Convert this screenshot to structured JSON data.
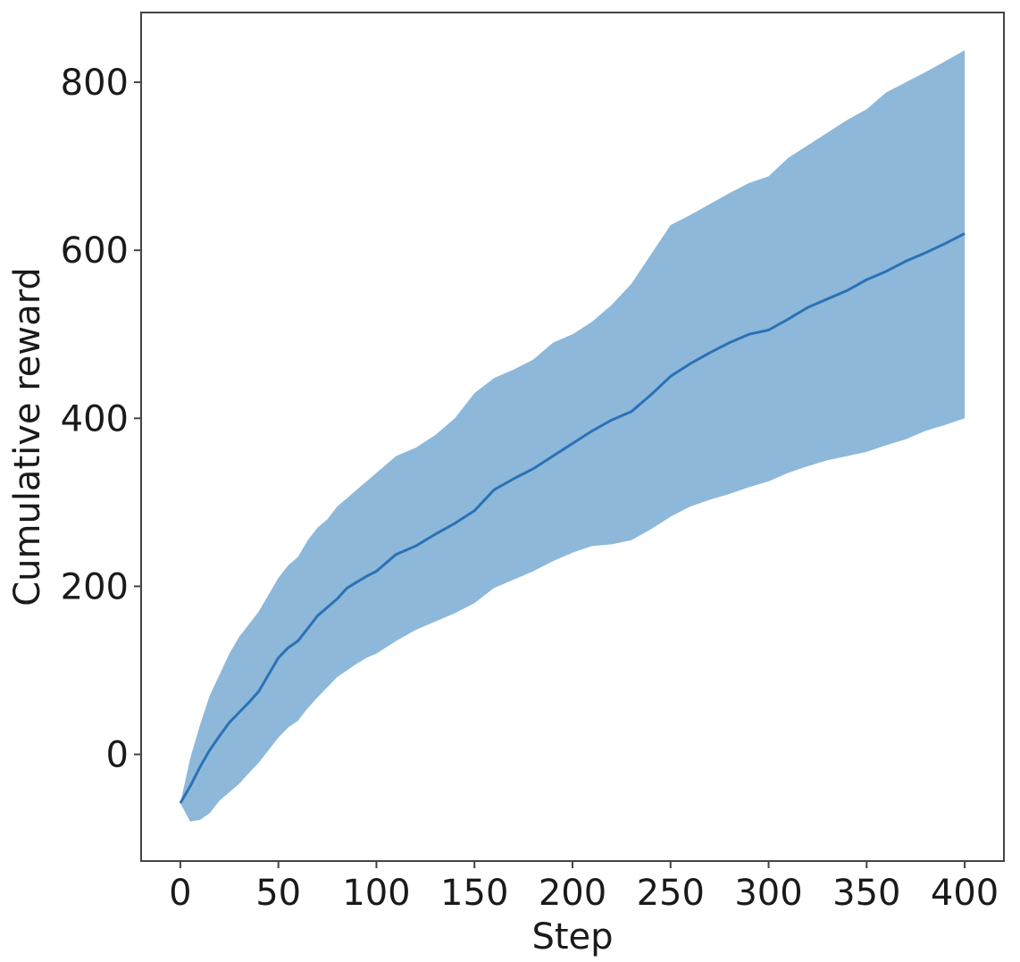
{
  "chart_data": {
    "type": "line",
    "xlabel": "Step",
    "ylabel": "Cumulative reward",
    "xlim": [
      -20,
      420
    ],
    "ylim": [
      -127,
      883
    ],
    "x_ticks": [
      0,
      50,
      100,
      150,
      200,
      250,
      300,
      350,
      400
    ],
    "y_ticks": [
      0,
      200,
      400,
      600,
      800
    ],
    "grid": false,
    "line_color": "#2a72b5",
    "band_color": "#8db8da",
    "series": [
      {
        "x": [
          0,
          5,
          10,
          15,
          20,
          25,
          30,
          35,
          40,
          45,
          50,
          55,
          60,
          65,
          70,
          75,
          80,
          85,
          90,
          95,
          100,
          110,
          120,
          130,
          140,
          150,
          160,
          170,
          180,
          190,
          200,
          210,
          220,
          230,
          240,
          250,
          260,
          270,
          280,
          290,
          300,
          310,
          320,
          330,
          340,
          350,
          360,
          370,
          380,
          390,
          400
        ],
        "mean": [
          -58,
          -38,
          -15,
          5,
          22,
          38,
          50,
          62,
          75,
          95,
          115,
          127,
          135,
          150,
          165,
          175,
          185,
          198,
          205,
          212,
          218,
          238,
          248,
          262,
          275,
          290,
          315,
          328,
          340,
          355,
          370,
          385,
          398,
          408,
          428,
          450,
          465,
          478,
          490,
          500,
          505,
          518,
          532,
          542,
          552,
          565,
          575,
          587,
          597,
          608,
          620
        ],
        "upper": [
          -58,
          -5,
          35,
          70,
          95,
          120,
          140,
          155,
          170,
          190,
          210,
          225,
          235,
          255,
          270,
          280,
          295,
          305,
          315,
          325,
          335,
          355,
          365,
          380,
          400,
          430,
          448,
          458,
          470,
          490,
          500,
          515,
          535,
          560,
          595,
          630,
          642,
          655,
          668,
          680,
          688,
          710,
          725,
          740,
          755,
          768,
          788,
          800,
          812,
          825,
          838
        ],
        "lower": [
          -58,
          -80,
          -78,
          -70,
          -55,
          -45,
          -35,
          -22,
          -10,
          5,
          20,
          32,
          40,
          55,
          68,
          80,
          92,
          100,
          108,
          115,
          120,
          135,
          148,
          158,
          168,
          180,
          198,
          208,
          218,
          230,
          240,
          248,
          250,
          255,
          268,
          283,
          295,
          303,
          310,
          318,
          325,
          335,
          343,
          350,
          355,
          360,
          368,
          375,
          385,
          392,
          400
        ]
      }
    ]
  }
}
